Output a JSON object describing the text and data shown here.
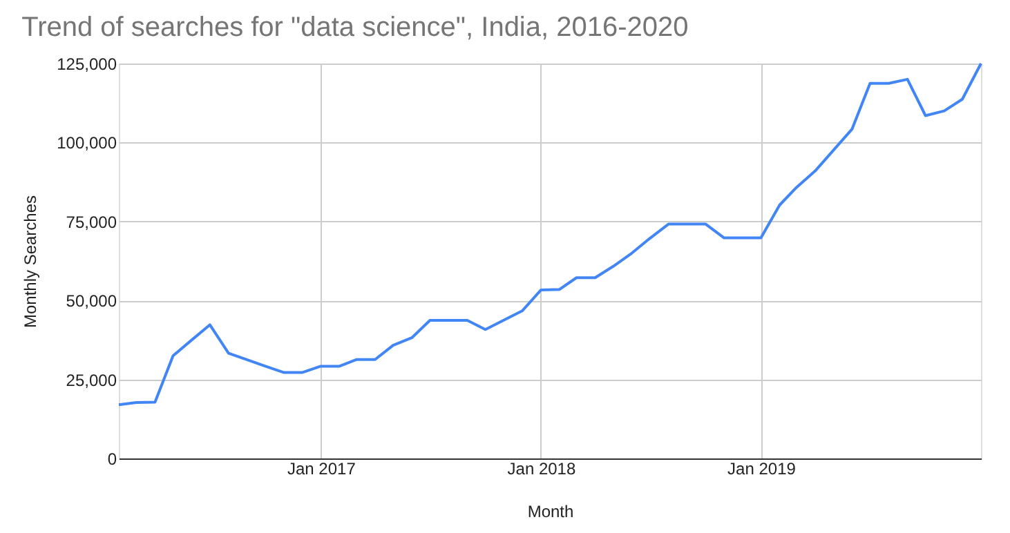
{
  "chart_data": {
    "type": "line",
    "title": "Trend of searches for \"data science\", India, 2016-2020",
    "xlabel": "Month",
    "ylabel": "Monthly Searches",
    "x": [
      "2016-02",
      "2016-03",
      "2016-04",
      "2016-05",
      "2016-06",
      "2016-07",
      "2016-08",
      "2016-09",
      "2016-10",
      "2016-11",
      "2016-12",
      "2017-01",
      "2017-02",
      "2017-03",
      "2017-04",
      "2017-05",
      "2017-06",
      "2017-07",
      "2017-08",
      "2017-09",
      "2017-10",
      "2017-11",
      "2017-12",
      "2018-01",
      "2018-02",
      "2018-03",
      "2018-04",
      "2018-05",
      "2018-06",
      "2018-07",
      "2018-08",
      "2018-09",
      "2018-10",
      "2018-11",
      "2018-12",
      "2019-01",
      "2019-02",
      "2019-03",
      "2019-04",
      "2019-05",
      "2019-06",
      "2019-07",
      "2019-08",
      "2019-09",
      "2019-10",
      "2019-11",
      "2019-12",
      "2020-01"
    ],
    "series": [
      {
        "color": "#4285f4",
        "values": [
          17000,
          17700,
          17800,
          32500,
          37500,
          42300,
          33300,
          31200,
          29200,
          27200,
          27200,
          29200,
          29200,
          31300,
          31300,
          35800,
          38200,
          43700,
          43700,
          43700,
          40800,
          43800,
          46700,
          53300,
          53500,
          57200,
          57200,
          60800,
          65000,
          69700,
          74200,
          74200,
          74200,
          69800,
          69800,
          69800,
          80200,
          85800,
          91000,
          97500,
          104200,
          118700,
          118700,
          120000,
          108500,
          110000,
          113700,
          125000
        ]
      }
    ],
    "xlim": [
      "2016-02",
      "2020-01"
    ],
    "xticks": [
      {
        "value": "2017-01",
        "label": "Jan 2017"
      },
      {
        "value": "2018-01",
        "label": "Jan 2018"
      },
      {
        "value": "2019-01",
        "label": "Jan 2019"
      }
    ],
    "ylim": [
      0,
      125000
    ],
    "yticks": [
      0,
      {
        "value": 25000,
        "label": "25,000"
      },
      {
        "value": 50000,
        "label": "50,000"
      },
      {
        "value": 75000,
        "label": "75,000"
      },
      {
        "value": 100000,
        "label": "100,000"
      },
      {
        "value": 125000,
        "label": "125,000"
      }
    ],
    "grid": true,
    "marker": "none",
    "line_style": "solid"
  }
}
